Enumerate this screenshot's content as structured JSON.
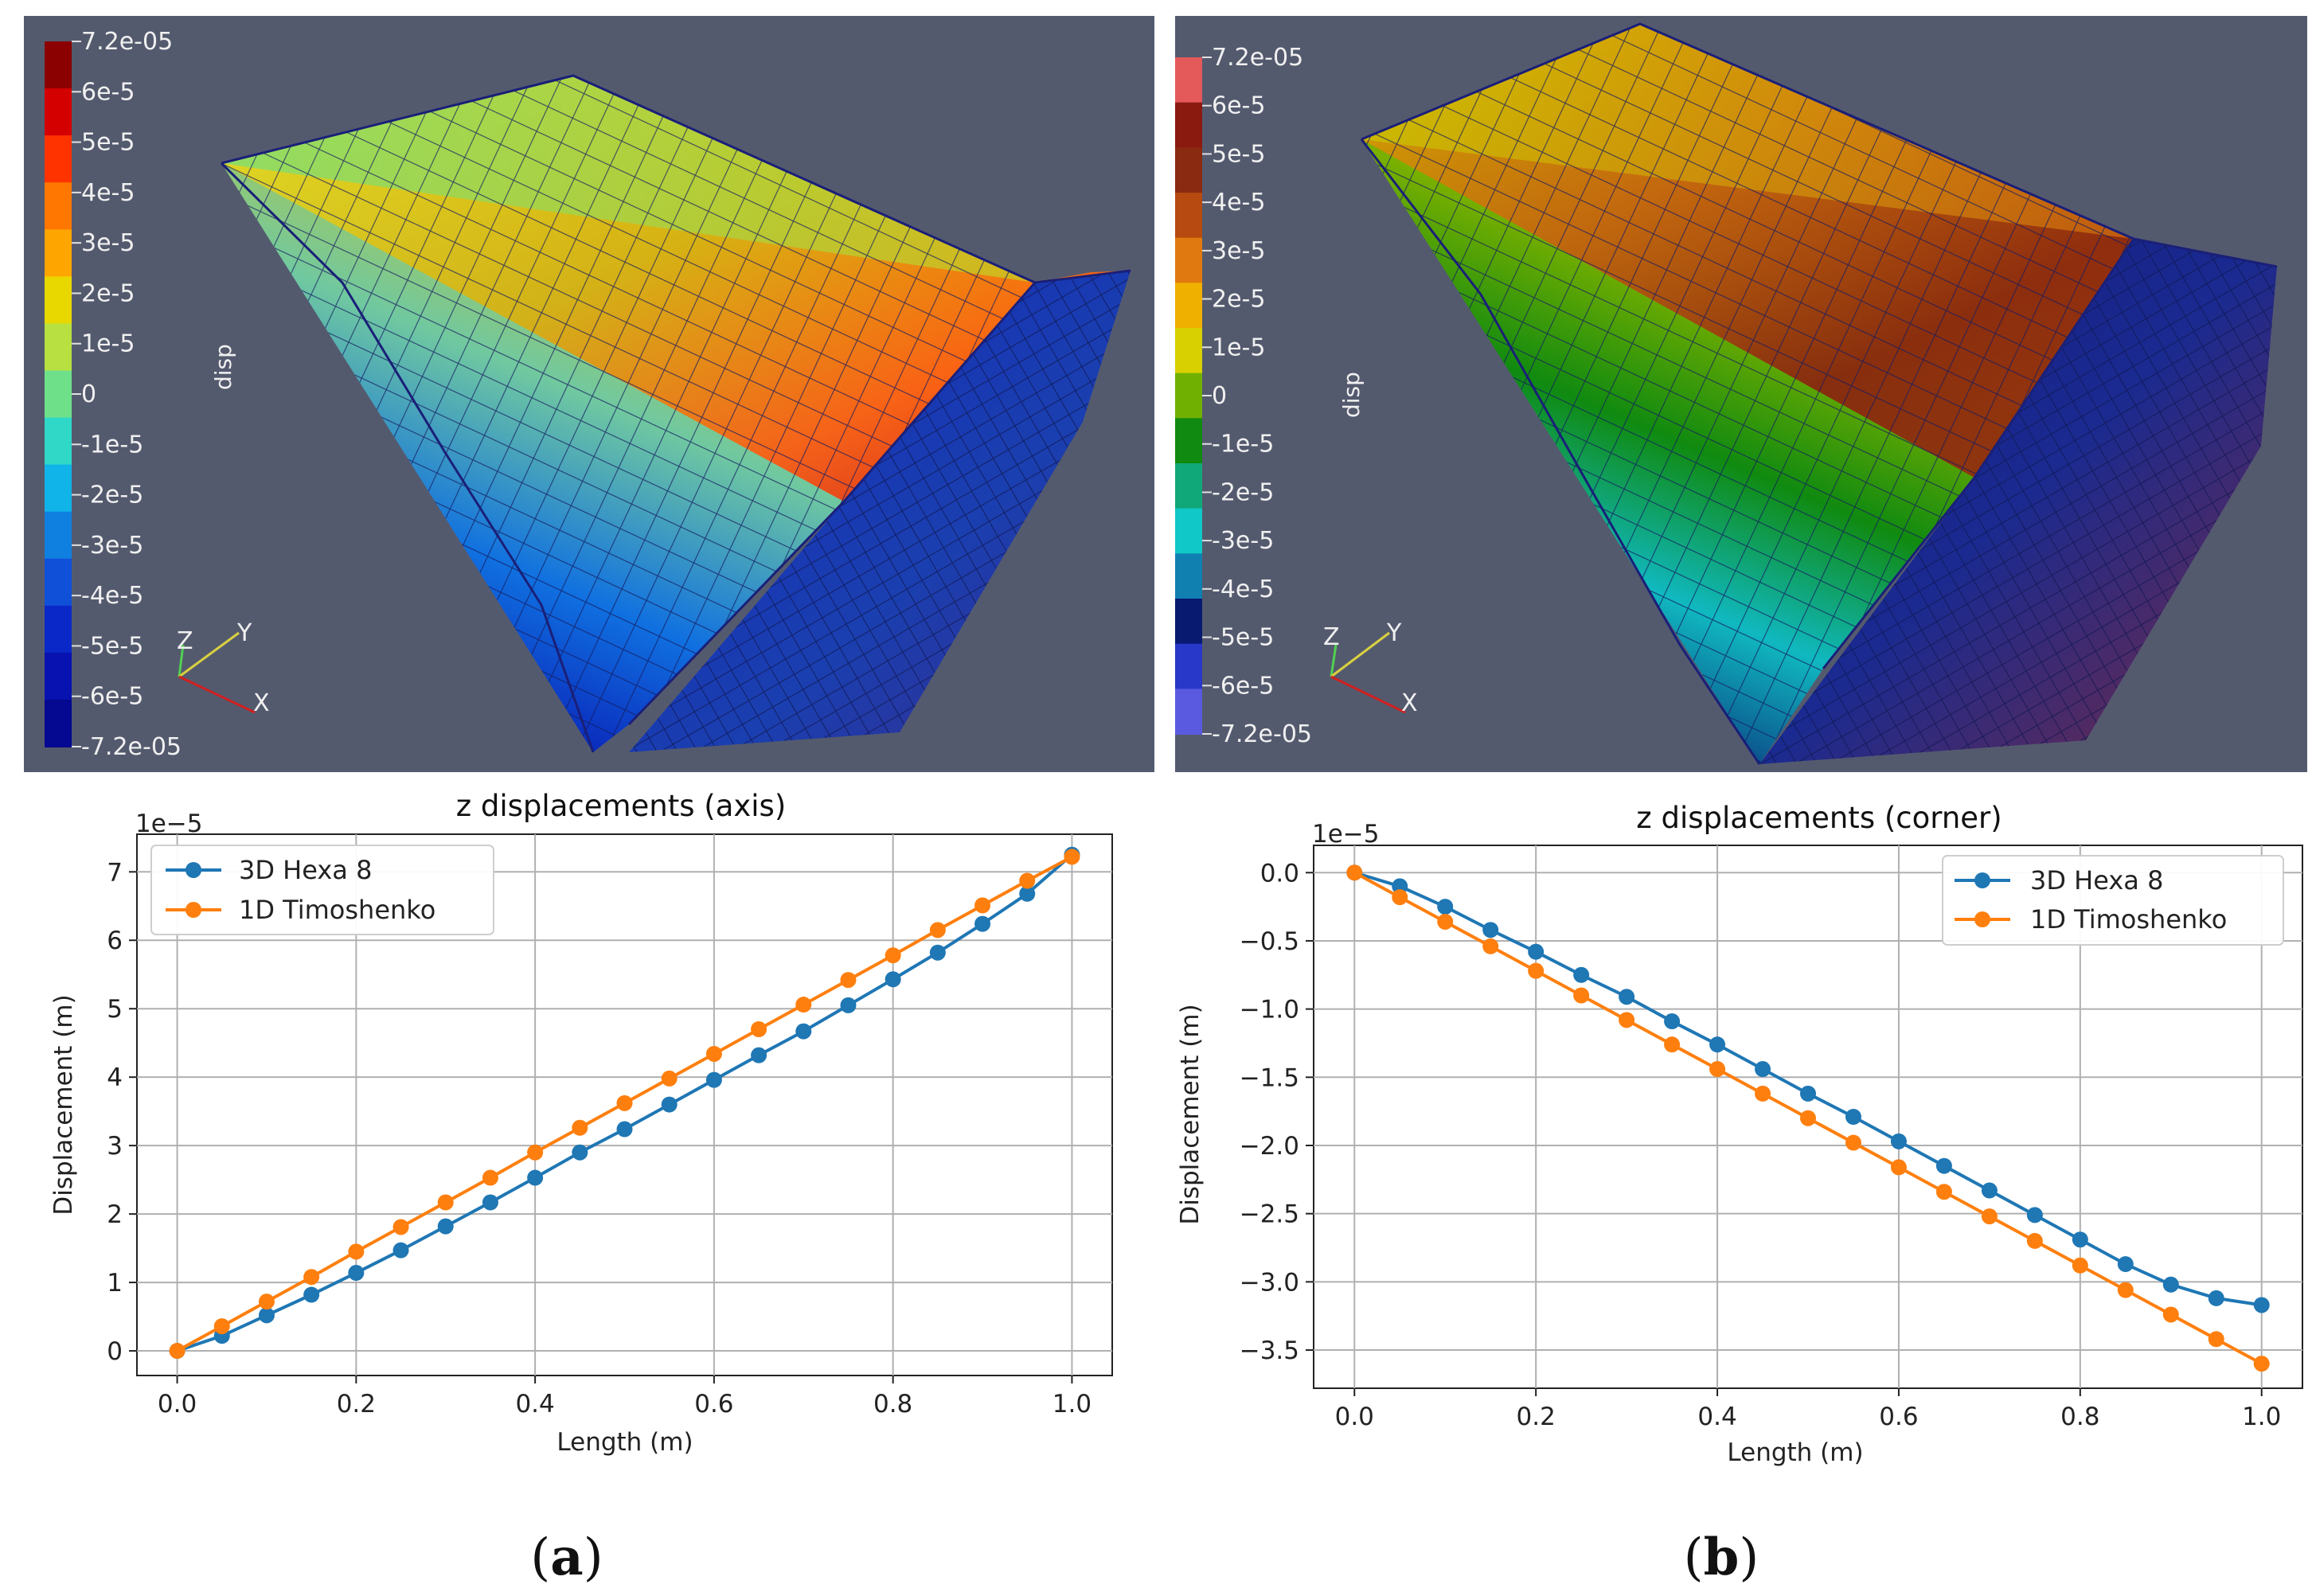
{
  "panels": [
    {
      "caption_letter": "a",
      "render": {
        "colorbar_title": "disp",
        "colorbar_ticks": [
          "7.2e-05",
          "6e-5",
          "5e-5",
          "4e-5",
          "3e-5",
          "2e-5",
          "1e-5",
          "0",
          "-1e-5",
          "-2e-5",
          "-3e-5",
          "-4e-5",
          "-5e-5",
          "-6e-5",
          "-7.2e-05"
        ],
        "colorbar_colors": [
          "#8b0000",
          "#d40000",
          "#ff3300",
          "#ff7700",
          "#ffa500",
          "#e8d800",
          "#b8e040",
          "#6fe08a",
          "#30d8c8",
          "#10b4e8",
          "#1080e0",
          "#1050d8",
          "#0a28c8",
          "#0812b0",
          "#050890"
        ],
        "axes_labels": [
          "Z",
          "Y",
          "X"
        ]
      }
    },
    {
      "caption_letter": "b",
      "render": {
        "colorbar_title": "disp",
        "colorbar_ticks": [
          "7.2e-05",
          "6e-5",
          "5e-5",
          "4e-5",
          "3e-5",
          "2e-5",
          "1e-5",
          "0",
          "-1e-5",
          "-2e-5",
          "-3e-5",
          "-4e-5",
          "-5e-5",
          "-6e-5",
          "-7.2e-05"
        ],
        "colorbar_colors": [
          "#e45a5a",
          "#8a1a10",
          "#8a2a10",
          "#b64a10",
          "#e07a10",
          "#f0b000",
          "#d8d000",
          "#70b000",
          "#108a10",
          "#10a878",
          "#10c8c8",
          "#1080b0",
          "#081a70",
          "#2838c8",
          "#5a5ae0"
        ],
        "axes_labels": [
          "Z",
          "Y",
          "X"
        ]
      }
    }
  ],
  "chart_data": [
    {
      "type": "line",
      "title": "z displacements (axis)",
      "xlabel": "Length (m)",
      "ylabel": "Displacement (m)",
      "offset_text": "1e−5",
      "xlim": [
        -0.045,
        1.045
      ],
      "ylim": [
        -0.36,
        7.55
      ],
      "xticks": [
        0.0,
        0.2,
        0.4,
        0.6,
        0.8,
        1.0
      ],
      "xtick_labels": [
        "0.0",
        "0.2",
        "0.4",
        "0.6",
        "0.8",
        "1.0"
      ],
      "yticks": [
        0,
        1,
        2,
        3,
        4,
        5,
        6,
        7
      ],
      "ytick_labels": [
        "0",
        "1",
        "2",
        "3",
        "4",
        "5",
        "6",
        "7"
      ],
      "legend_position": "upper-left",
      "x": [
        0.0,
        0.05,
        0.1,
        0.15,
        0.2,
        0.25,
        0.3,
        0.35,
        0.4,
        0.45,
        0.5,
        0.55,
        0.6,
        0.65,
        0.7,
        0.75,
        0.8,
        0.85,
        0.9,
        0.95,
        1.0
      ],
      "series": [
        {
          "name": "3D Hexa 8",
          "color": "#1f77b4",
          "values": [
            0,
            0.22,
            0.52,
            0.82,
            1.14,
            1.47,
            1.82,
            2.17,
            2.53,
            2.9,
            3.24,
            3.6,
            3.96,
            4.32,
            4.67,
            5.05,
            5.43,
            5.82,
            6.24,
            6.68,
            7.25
          ]
        },
        {
          "name": "1D Timoshenko",
          "color": "#ff7f0e",
          "values": [
            0,
            0.36,
            0.72,
            1.08,
            1.45,
            1.81,
            2.17,
            2.53,
            2.9,
            3.26,
            3.62,
            3.98,
            4.34,
            4.7,
            5.06,
            5.42,
            5.78,
            6.15,
            6.51,
            6.87,
            7.22
          ]
        }
      ]
    },
    {
      "type": "line",
      "title": "z displacements (corner)",
      "xlabel": "Length (m)",
      "ylabel": "Displacement (m)",
      "offset_text": "1e−5",
      "xlim": [
        -0.045,
        1.045
      ],
      "ylim": [
        -3.78,
        0.2
      ],
      "xticks": [
        0.0,
        0.2,
        0.4,
        0.6,
        0.8,
        1.0
      ],
      "xtick_labels": [
        "0.0",
        "0.2",
        "0.4",
        "0.6",
        "0.8",
        "1.0"
      ],
      "yticks": [
        0.0,
        -0.5,
        -1.0,
        -1.5,
        -2.0,
        -2.5,
        -3.0,
        -3.5
      ],
      "ytick_labels": [
        "0.0",
        "−0.5",
        "−1.0",
        "−1.5",
        "−2.0",
        "−2.5",
        "−3.0",
        "−3.5"
      ],
      "legend_position": "upper-right",
      "x": [
        0.0,
        0.05,
        0.1,
        0.15,
        0.2,
        0.25,
        0.3,
        0.35,
        0.4,
        0.45,
        0.5,
        0.55,
        0.6,
        0.65,
        0.7,
        0.75,
        0.8,
        0.85,
        0.9,
        0.95,
        1.0
      ],
      "series": [
        {
          "name": "3D Hexa 8",
          "color": "#1f77b4",
          "values": [
            0,
            -0.1,
            -0.25,
            -0.42,
            -0.58,
            -0.75,
            -0.91,
            -1.09,
            -1.26,
            -1.44,
            -1.62,
            -1.79,
            -1.97,
            -2.15,
            -2.33,
            -2.51,
            -2.69,
            -2.87,
            -3.02,
            -3.12,
            -3.17
          ]
        },
        {
          "name": "1D Timoshenko",
          "color": "#ff7f0e",
          "values": [
            0,
            -0.18,
            -0.36,
            -0.54,
            -0.72,
            -0.9,
            -1.08,
            -1.26,
            -1.44,
            -1.62,
            -1.8,
            -1.98,
            -2.16,
            -2.34,
            -2.52,
            -2.7,
            -2.88,
            -3.06,
            -3.24,
            -3.42,
            -3.6
          ]
        }
      ]
    }
  ]
}
